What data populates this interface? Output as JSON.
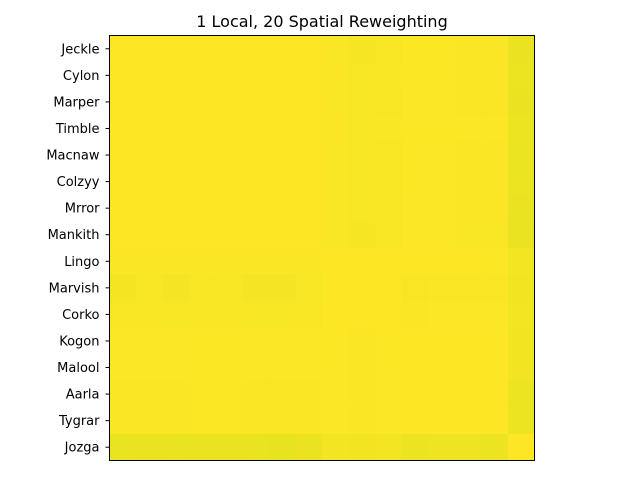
{
  "chart_data": {
    "type": "heatmap",
    "title": "1 Local, 20 Spatial Reweighting",
    "xlabel": "",
    "ylabel": "",
    "y_categories": [
      "Jeckle",
      "Cylon",
      "Marper",
      "Timble",
      "Macnaw",
      "Colzyy",
      "Mrror",
      "Mankith",
      "Lingo",
      "Marvish",
      "Corko",
      "Kogon",
      "Malool",
      "Aarla",
      "Tygrar",
      "Jozga"
    ],
    "x_tick_labels": [],
    "colormap": "viridis-upper",
    "color_low": "#d4df1c",
    "color_high": "#fde725",
    "vmin": 0.0,
    "vmax": 1.0,
    "values": [
      [
        1.0,
        1.0,
        1.0,
        1.0,
        1.0,
        1.0,
        1.0,
        1.0,
        0.9,
        0.8,
        0.88,
        0.97,
        0.97,
        0.92,
        0.92,
        0.55
      ],
      [
        1.0,
        1.0,
        1.0,
        1.0,
        1.0,
        1.0,
        1.0,
        1.0,
        0.92,
        0.85,
        0.9,
        0.97,
        0.97,
        0.93,
        0.93,
        0.58
      ],
      [
        1.0,
        1.0,
        1.0,
        1.0,
        1.0,
        1.0,
        1.0,
        1.0,
        0.9,
        0.82,
        0.88,
        0.96,
        0.96,
        0.92,
        0.92,
        0.55
      ],
      [
        1.0,
        1.0,
        1.0,
        1.0,
        1.0,
        1.0,
        1.0,
        1.0,
        0.92,
        0.85,
        0.9,
        0.98,
        0.97,
        0.94,
        0.94,
        0.58
      ],
      [
        1.0,
        1.0,
        1.0,
        1.0,
        1.0,
        1.0,
        1.0,
        1.0,
        0.91,
        0.84,
        0.89,
        0.97,
        0.95,
        0.93,
        0.93,
        0.57
      ],
      [
        1.0,
        1.0,
        1.0,
        1.0,
        1.0,
        1.0,
        1.0,
        1.0,
        0.91,
        0.85,
        0.89,
        0.98,
        0.96,
        0.93,
        0.93,
        0.58
      ],
      [
        1.0,
        1.0,
        1.0,
        1.0,
        1.0,
        1.0,
        1.0,
        1.0,
        0.9,
        0.82,
        0.88,
        0.96,
        0.96,
        0.92,
        0.92,
        0.55
      ],
      [
        1.0,
        1.0,
        1.0,
        1.0,
        1.0,
        1.0,
        1.0,
        1.0,
        0.9,
        0.8,
        0.87,
        0.96,
        0.96,
        0.9,
        0.9,
        0.52
      ],
      [
        0.93,
        0.93,
        0.92,
        0.92,
        0.92,
        0.92,
        0.92,
        0.92,
        1.0,
        1.0,
        1.0,
        1.0,
        1.0,
        1.0,
        0.97,
        0.72
      ],
      [
        0.78,
        0.82,
        0.76,
        0.82,
        0.82,
        0.75,
        0.75,
        0.82,
        1.0,
        1.0,
        1.0,
        0.88,
        0.9,
        0.92,
        0.92,
        0.7
      ],
      [
        0.88,
        0.88,
        0.84,
        0.88,
        0.88,
        0.84,
        0.84,
        0.88,
        1.0,
        1.0,
        1.0,
        0.93,
        0.95,
        0.95,
        0.95,
        0.72
      ],
      [
        0.96,
        0.96,
        0.96,
        0.98,
        0.98,
        0.96,
        0.96,
        0.96,
        0.98,
        0.93,
        0.98,
        1.0,
        1.0,
        1.0,
        1.0,
        0.7
      ],
      [
        0.96,
        0.96,
        0.96,
        0.98,
        0.97,
        0.96,
        0.96,
        0.96,
        0.98,
        0.93,
        0.98,
        1.0,
        1.0,
        1.0,
        1.0,
        0.7
      ],
      [
        0.92,
        0.92,
        0.92,
        0.94,
        0.94,
        0.92,
        0.92,
        0.92,
        0.96,
        0.93,
        0.96,
        1.0,
        1.0,
        1.0,
        1.0,
        0.6
      ],
      [
        0.92,
        0.92,
        0.92,
        0.94,
        0.94,
        0.92,
        0.92,
        0.92,
        0.96,
        0.93,
        0.96,
        1.0,
        1.0,
        1.0,
        1.0,
        0.58
      ],
      [
        0.52,
        0.55,
        0.5,
        0.56,
        0.56,
        0.52,
        0.48,
        0.55,
        0.72,
        0.7,
        0.72,
        0.6,
        0.64,
        0.66,
        0.6,
        1.0
      ]
    ],
    "grid": false,
    "legend": "none"
  }
}
